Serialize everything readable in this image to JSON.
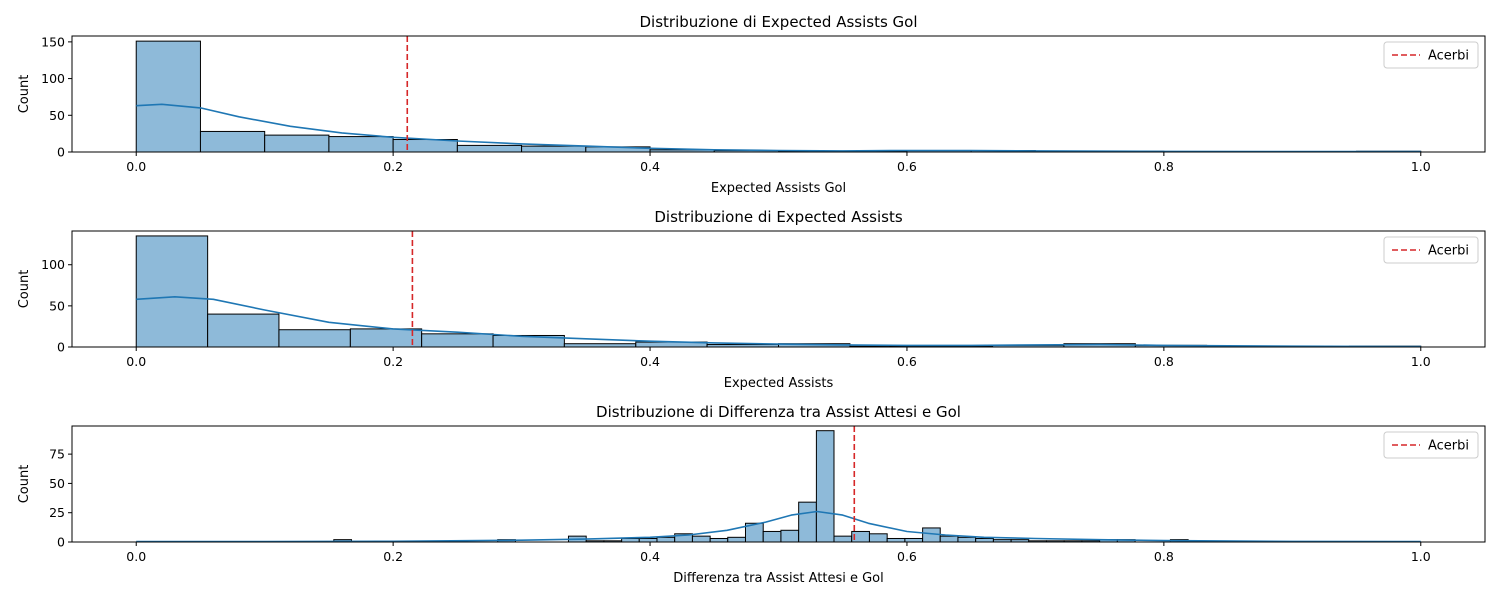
{
  "chart_data": [
    {
      "type": "bar",
      "title": "Distribuzione di Expected Assists Gol",
      "xlabel": "Expected Assists Gol",
      "ylabel": "Count",
      "xlim": [
        -0.05,
        1.05
      ],
      "ylim": [
        0,
        158
      ],
      "xticks": [
        "0.0",
        "0.2",
        "0.4",
        "0.6",
        "0.8",
        "1.0"
      ],
      "yticks": [
        0,
        50,
        100,
        150
      ],
      "bin_edges": [
        0,
        0.05,
        0.1,
        0.15,
        0.2,
        0.25,
        0.3,
        0.35,
        0.4,
        0.45,
        0.5,
        0.55,
        0.6,
        0.65,
        0.7,
        0.75,
        0.8,
        0.85,
        0.9,
        0.95,
        1.0
      ],
      "counts": [
        151,
        28,
        23,
        21,
        17,
        9,
        8,
        7,
        3,
        2,
        1,
        1,
        2,
        2,
        1,
        1,
        0,
        0,
        0,
        1
      ],
      "kde": [
        [
          0.0,
          63
        ],
        [
          0.02,
          65
        ],
        [
          0.05,
          60
        ],
        [
          0.08,
          48
        ],
        [
          0.12,
          35
        ],
        [
          0.16,
          26
        ],
        [
          0.2,
          20
        ],
        [
          0.25,
          15
        ],
        [
          0.3,
          11
        ],
        [
          0.35,
          8
        ],
        [
          0.4,
          5
        ],
        [
          0.45,
          3
        ],
        [
          0.5,
          2
        ],
        [
          0.55,
          1.5
        ],
        [
          0.6,
          2
        ],
        [
          0.65,
          2
        ],
        [
          0.7,
          1.5
        ],
        [
          0.8,
          0.8
        ],
        [
          0.9,
          0.6
        ],
        [
          1.0,
          0.5
        ]
      ],
      "marker": {
        "name": "Acerbi",
        "x": 0.211,
        "color": "#d62728"
      },
      "legend": "upper right",
      "bar_color": "#8ebad9",
      "kde_color": "#1f77b4"
    },
    {
      "type": "bar",
      "title": "Distribuzione di Expected Assists",
      "xlabel": "Expected Assists",
      "ylabel": "Count",
      "xlim": [
        -0.05,
        1.05
      ],
      "ylim": [
        0,
        141
      ],
      "xticks": [
        "0.0",
        "0.2",
        "0.4",
        "0.6",
        "0.8",
        "1.0"
      ],
      "yticks": [
        0,
        50,
        100
      ],
      "bin_edges": [
        0,
        0.0556,
        0.1111,
        0.1667,
        0.2222,
        0.2778,
        0.3333,
        0.3889,
        0.4444,
        0.5,
        0.5556,
        0.6111,
        0.6667,
        0.7222,
        0.7778,
        0.8333,
        0.8889,
        0.9444,
        1.0
      ],
      "counts": [
        135,
        40,
        21,
        22,
        16,
        14,
        4,
        6,
        3,
        4,
        1,
        1,
        2,
        4,
        2,
        0,
        0,
        1
      ],
      "kde": [
        [
          0.0,
          58
        ],
        [
          0.03,
          61
        ],
        [
          0.06,
          58
        ],
        [
          0.1,
          45
        ],
        [
          0.15,
          30
        ],
        [
          0.2,
          22
        ],
        [
          0.25,
          18
        ],
        [
          0.3,
          13
        ],
        [
          0.35,
          10
        ],
        [
          0.4,
          7
        ],
        [
          0.45,
          5
        ],
        [
          0.5,
          3.5
        ],
        [
          0.55,
          2.5
        ],
        [
          0.6,
          2
        ],
        [
          0.65,
          2
        ],
        [
          0.7,
          2.5
        ],
        [
          0.75,
          3
        ],
        [
          0.8,
          2
        ],
        [
          0.9,
          1
        ],
        [
          1.0,
          0.5
        ]
      ],
      "marker": {
        "name": "Acerbi",
        "x": 0.215,
        "color": "#d62728"
      },
      "legend": "upper right",
      "bar_color": "#8ebad9",
      "kde_color": "#1f77b4"
    },
    {
      "type": "bar",
      "title": "Distribuzione di Differenza tra Assist Attesi e Gol",
      "xlabel": "Differenza tra Assist Attesi e Gol",
      "ylabel": "Count",
      "xlim": [
        -0.05,
        1.05
      ],
      "ylim": [
        0,
        99
      ],
      "xticks": [
        "0.0",
        "0.2",
        "0.4",
        "0.6",
        "0.8",
        "1.0"
      ],
      "yticks": [
        0,
        25,
        50,
        75
      ],
      "bin_edges": [
        0.1538,
        0.1676,
        0.2814,
        0.2952,
        0.3365,
        0.3503,
        0.3641,
        0.3779,
        0.3916,
        0.4054,
        0.4192,
        0.433,
        0.4468,
        0.4605,
        0.4743,
        0.4881,
        0.5019,
        0.5157,
        0.5295,
        0.5432,
        0.557,
        0.5708,
        0.5846,
        0.5984,
        0.6122,
        0.6259,
        0.6397,
        0.6535,
        0.6673,
        0.6811,
        0.6948,
        0.7086,
        0.7224,
        0.7362,
        0.75,
        0.7638,
        0.7776,
        0.8051,
        0.8189
      ],
      "bins": [
        [
          0.1538,
          0.1676,
          2
        ],
        [
          0.2814,
          0.2952,
          2
        ],
        [
          0.3365,
          0.3503,
          5
        ],
        [
          0.3503,
          0.3641,
          1
        ],
        [
          0.3641,
          0.3779,
          1
        ],
        [
          0.3779,
          0.3916,
          3
        ],
        [
          0.3916,
          0.4054,
          3
        ],
        [
          0.4054,
          0.4192,
          4
        ],
        [
          0.4192,
          0.433,
          7
        ],
        [
          0.433,
          0.4468,
          5
        ],
        [
          0.4468,
          0.4605,
          3
        ],
        [
          0.4605,
          0.4743,
          4
        ],
        [
          0.4743,
          0.4881,
          16
        ],
        [
          0.4881,
          0.5019,
          9
        ],
        [
          0.5019,
          0.5157,
          10
        ],
        [
          0.5157,
          0.5295,
          34
        ],
        [
          0.5295,
          0.5432,
          95
        ],
        [
          0.5432,
          0.557,
          5
        ],
        [
          0.557,
          0.5708,
          9
        ],
        [
          0.5708,
          0.5846,
          7
        ],
        [
          0.5846,
          0.5984,
          3
        ],
        [
          0.5984,
          0.6122,
          3
        ],
        [
          0.6122,
          0.6259,
          12
        ],
        [
          0.6259,
          0.6397,
          5
        ],
        [
          0.6397,
          0.6535,
          4
        ],
        [
          0.6535,
          0.6673,
          3
        ],
        [
          0.6673,
          0.6811,
          2
        ],
        [
          0.6811,
          0.6948,
          2
        ],
        [
          0.6948,
          0.7086,
          1
        ],
        [
          0.7086,
          0.7224,
          1
        ],
        [
          0.7224,
          0.7362,
          1
        ],
        [
          0.7362,
          0.75,
          1
        ],
        [
          0.75,
          0.7638,
          2
        ],
        [
          0.7638,
          0.7776,
          2
        ],
        [
          0.8051,
          0.8189,
          2
        ]
      ],
      "kde": [
        [
          0.0,
          0.3
        ],
        [
          0.1,
          0.4
        ],
        [
          0.2,
          0.6
        ],
        [
          0.3,
          1.5
        ],
        [
          0.35,
          2.5
        ],
        [
          0.4,
          4
        ],
        [
          0.43,
          6
        ],
        [
          0.46,
          10
        ],
        [
          0.49,
          17
        ],
        [
          0.51,
          23
        ],
        [
          0.53,
          26
        ],
        [
          0.55,
          23
        ],
        [
          0.57,
          16
        ],
        [
          0.6,
          9
        ],
        [
          0.63,
          6
        ],
        [
          0.66,
          4
        ],
        [
          0.7,
          3
        ],
        [
          0.75,
          2
        ],
        [
          0.8,
          1.2
        ],
        [
          0.9,
          0.5
        ],
        [
          1.0,
          0.3
        ]
      ],
      "marker": {
        "name": "Acerbi",
        "x": 0.559,
        "color": "#d62728"
      },
      "legend": "upper right",
      "bar_color": "#8ebad9",
      "kde_color": "#1f77b4"
    }
  ]
}
